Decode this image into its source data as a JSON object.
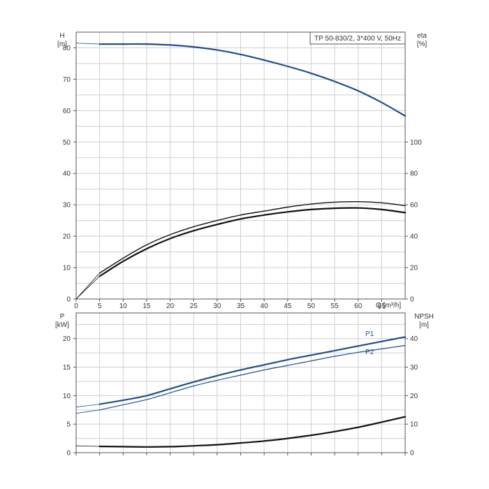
{
  "chart_data": [
    {
      "type": "line",
      "title": "TP 50-830/2, 3*400 V, 50Hz",
      "x_axis": {
        "label": "Q [m³/h]",
        "range": [
          0,
          70
        ],
        "ticks": [
          "0",
          "5",
          "10",
          "15",
          "20",
          "25",
          "30",
          "35",
          "40",
          "45",
          "50",
          "55",
          "60",
          "65"
        ]
      },
      "y_left": {
        "label": "H",
        "unit": "[m]",
        "range": [
          0,
          85
        ],
        "ticks": [
          "0",
          "10",
          "20",
          "30",
          "40",
          "50",
          "60",
          "70",
          "80"
        ]
      },
      "y_right": {
        "label": "eta",
        "unit": "[%]",
        "range": [
          0,
          170
        ],
        "ticks": [
          "0",
          "20",
          "40",
          "60",
          "80",
          "100"
        ]
      },
      "grid": true,
      "series": [
        {
          "axis": "left",
          "color": "#1f4e8c",
          "width": 2.2,
          "x": [
            5,
            10,
            15,
            20,
            25,
            30,
            35,
            40,
            45,
            50,
            55,
            60,
            65,
            70
          ],
          "y": [
            81.2,
            81.2,
            81.2,
            80.9,
            80.3,
            79.3,
            77.9,
            76.1,
            74.1,
            71.9,
            69.3,
            66.3,
            62.6,
            58.3
          ],
          "ext_x": [
            0,
            5
          ],
          "ext_y": [
            81.5,
            81.2
          ]
        },
        {
          "axis": "right",
          "color": "#111111",
          "width": 2.2,
          "x": [
            5,
            10,
            15,
            20,
            25,
            30,
            35,
            40,
            45,
            50,
            55,
            60,
            65,
            70
          ],
          "y": [
            14.5,
            24,
            32,
            38.5,
            43.5,
            47.5,
            51,
            53.5,
            55.5,
            57,
            57.8,
            58,
            57,
            55
          ],
          "ext_x": [
            0,
            5
          ],
          "ext_y": [
            0,
            14.5
          ]
        },
        {
          "axis": "right",
          "color": "#111111",
          "width": 1.4,
          "x": [
            5,
            10,
            15,
            20,
            25,
            30,
            35,
            40,
            45,
            50,
            55,
            60,
            65,
            70
          ],
          "y": [
            16.5,
            26,
            34.5,
            41,
            46,
            50,
            53.5,
            56,
            58.5,
            60.5,
            61.7,
            62,
            61.3,
            59.5
          ],
          "ext_x": [
            0,
            5
          ],
          "ext_y": [
            0,
            16.5
          ]
        }
      ]
    },
    {
      "type": "line",
      "x_axis": {
        "range": [
          0,
          70
        ]
      },
      "y_left": {
        "label": "P",
        "unit": "[kW]",
        "range": [
          0,
          24.5
        ],
        "ticks": [
          "0",
          "5",
          "10",
          "15",
          "20"
        ]
      },
      "y_right": {
        "label": "NPSH",
        "unit": "[m]",
        "range": [
          0,
          49
        ],
        "ticks": [
          "0",
          "10",
          "20",
          "30",
          "40"
        ]
      },
      "grid": true,
      "series": [
        {
          "name": "P1",
          "axis": "left",
          "color": "#1f4e8c",
          "width": 2.2,
          "x": [
            5,
            10,
            15,
            20,
            25,
            30,
            35,
            40,
            45,
            50,
            55,
            60,
            65,
            70
          ],
          "y": [
            8.5,
            9.2,
            10.0,
            11.2,
            12.4,
            13.5,
            14.5,
            15.4,
            16.3,
            17.1,
            17.9,
            18.7,
            19.5,
            20.3
          ],
          "ext_x": [
            0,
            5
          ],
          "ext_y": [
            8.0,
            8.5
          ]
        },
        {
          "name": "P2",
          "axis": "left",
          "color": "#1f4e8c",
          "width": 1.2,
          "x": [
            5,
            10,
            15,
            20,
            25,
            30,
            35,
            40,
            45,
            50,
            55,
            60,
            65,
            70
          ],
          "y": [
            7.5,
            8.4,
            9.3,
            10.5,
            11.7,
            12.7,
            13.6,
            14.5,
            15.3,
            16.1,
            16.9,
            17.6,
            18.2,
            18.8
          ],
          "ext_x": [
            0,
            5
          ],
          "ext_y": [
            6.9,
            7.5
          ]
        },
        {
          "axis": "right",
          "color": "#111111",
          "width": 2.2,
          "x": [
            5,
            10,
            15,
            20,
            25,
            30,
            35,
            40,
            45,
            50,
            55,
            60,
            65,
            70
          ],
          "y": [
            2.2,
            2.1,
            2.0,
            2.1,
            2.4,
            2.8,
            3.4,
            4.1,
            5.0,
            6.1,
            7.4,
            8.9,
            10.7,
            12.6
          ],
          "ext_x": [
            0,
            5
          ],
          "ext_y": [
            2.4,
            2.2
          ]
        }
      ]
    }
  ]
}
